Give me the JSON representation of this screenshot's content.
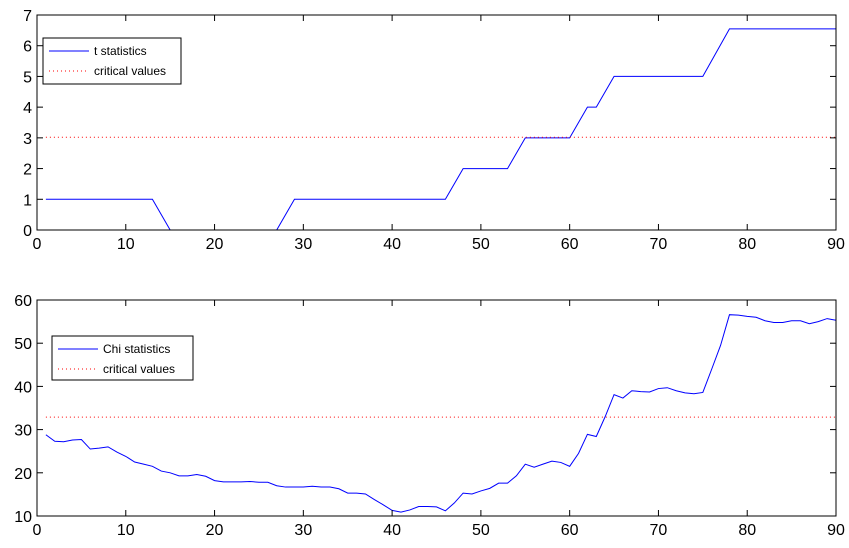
{
  "chart_data": [
    {
      "type": "line",
      "xlim": [
        0,
        90
      ],
      "ylim": [
        0,
        7
      ],
      "xticks": [
        "0",
        "10",
        "20",
        "30",
        "40",
        "50",
        "60",
        "70",
        "80",
        "90"
      ],
      "yticks": [
        "0",
        "1",
        "2",
        "3",
        "4",
        "5",
        "6",
        "7"
      ],
      "grid": false,
      "legend_position": "top-left",
      "series": [
        {
          "name": "t statistics",
          "color": "#0000ff",
          "style": "solid",
          "x": [
            1,
            13,
            15,
            27,
            29,
            46,
            48,
            53,
            55,
            60,
            62,
            63,
            65,
            75,
            78,
            90
          ],
          "y": [
            1,
            1,
            0,
            0,
            1,
            1,
            2,
            2,
            3,
            3,
            4,
            4,
            5,
            5,
            6.55,
            6.55
          ]
        },
        {
          "name": "critical values",
          "color": "#ff0000",
          "style": "dotted",
          "x": [
            1,
            90
          ],
          "y": [
            3.02,
            3.02
          ]
        }
      ]
    },
    {
      "type": "line",
      "xlim": [
        0,
        90
      ],
      "ylim": [
        10,
        60
      ],
      "xticks": [
        "0",
        "10",
        "20",
        "30",
        "40",
        "50",
        "60",
        "70",
        "80",
        "90"
      ],
      "yticks": [
        "10",
        "20",
        "30",
        "40",
        "50",
        "60"
      ],
      "grid": false,
      "legend_position": "top-left",
      "series": [
        {
          "name": "Chi statistics",
          "color": "#0000ff",
          "style": "solid",
          "x": [
            1,
            2,
            3,
            4,
            5,
            6,
            7,
            8,
            9,
            10,
            11,
            12,
            13,
            14,
            15,
            16,
            17,
            18,
            19,
            20,
            21,
            22,
            23,
            24,
            25,
            26,
            27,
            28,
            29,
            30,
            31,
            32,
            33,
            34,
            35,
            36,
            37,
            38,
            39,
            40,
            41,
            42,
            43,
            44,
            45,
            46,
            47,
            48,
            49,
            50,
            51,
            52,
            53,
            54,
            55,
            56,
            57,
            58,
            59,
            60,
            61,
            62,
            63,
            64,
            65,
            66,
            67,
            68,
            69,
            70,
            71,
            72,
            73,
            74,
            75,
            76,
            77,
            78,
            79,
            80,
            81,
            82,
            83,
            84,
            85,
            86,
            87,
            88,
            89,
            90
          ],
          "y": [
            28.8,
            27.3,
            27.2,
            27.6,
            27.7,
            25.5,
            25.7,
            26.0,
            24.8,
            23.8,
            22.5,
            22.0,
            21.5,
            20.4,
            20.0,
            19.3,
            19.3,
            19.6,
            19.2,
            18.2,
            17.9,
            17.9,
            17.9,
            18.0,
            17.8,
            17.8,
            17.0,
            16.7,
            16.7,
            16.7,
            16.9,
            16.7,
            16.7,
            16.3,
            15.3,
            15.3,
            15.1,
            13.8,
            12.6,
            11.3,
            10.9,
            11.4,
            12.2,
            12.2,
            12.1,
            11.2,
            13.0,
            15.3,
            15.1,
            15.8,
            16.4,
            17.6,
            17.6,
            19.3,
            22.0,
            21.3,
            22.0,
            22.7,
            22.4,
            21.5,
            24.5,
            28.9,
            28.4,
            33.0,
            38.1,
            37.3,
            39.0,
            38.8,
            38.7,
            39.5,
            39.7,
            39.0,
            38.5,
            38.3,
            38.6,
            44.0,
            49.5,
            56.6,
            56.5,
            56.2,
            56.0,
            55.2,
            54.8,
            54.8,
            55.2,
            55.2,
            54.5,
            55.0,
            55.7,
            55.3
          ]
        },
        {
          "name": "critical values",
          "color": "#ff0000",
          "style": "dotted",
          "x": [
            1,
            90
          ],
          "y": [
            32.9,
            32.9
          ]
        }
      ]
    }
  ]
}
